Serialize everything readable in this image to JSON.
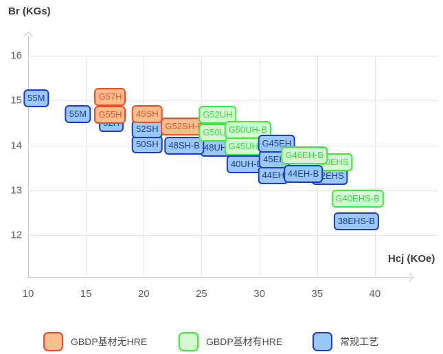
{
  "series_styles": {
    "gbdp_no_hre": {
      "fill": "#FBBF8D",
      "border": "#F14A2B",
      "text": "#E8512F"
    },
    "gbdp_hre": {
      "fill": "#D5FAD1",
      "border": "#3BEB3B",
      "text": "#32DC46"
    },
    "conventional": {
      "fill": "#9BC8FB",
      "border": "#1A3BCE",
      "text": "#1F3C94"
    }
  },
  "legend": [
    {
      "key": "gbdp_no_hre",
      "label": "GBDP基材无HRE",
      "x": 63
    },
    {
      "key": "gbdp_hre",
      "label": "GBDP基材有HRE",
      "x": 260
    },
    {
      "key": "conventional",
      "label": "常规工艺",
      "x": 455
    }
  ],
  "chart_data": {
    "type": "scatter",
    "title": "",
    "xlabel": "Hcj (KOe)",
    "ylabel": "Br (KGs)",
    "xlim": [
      10,
      43
    ],
    "ylim": [
      11.5,
      16.6
    ],
    "x_ticks": [
      10,
      15,
      20,
      25,
      30,
      35,
      40
    ],
    "y_ticks": [
      16,
      15,
      14,
      13,
      12
    ],
    "grid": true,
    "legend_position": "bottom",
    "series": [
      {
        "name": "GBDP基材无HRE",
        "key": "gbdp_no_hre"
      },
      {
        "name": "GBDP基材有HRE",
        "key": "gbdp_hre"
      },
      {
        "name": "常规工艺",
        "key": "conventional"
      }
    ],
    "points": [
      {
        "label": "55M",
        "hcj": 10.7,
        "br": 15.05,
        "series": "conventional"
      },
      {
        "label": "55M",
        "hcj": 14.3,
        "br": 14.7,
        "series": "conventional"
      },
      {
        "label": "52H",
        "hcj": 17.2,
        "br": 14.5,
        "series": "conventional"
      },
      {
        "label": "G57H",
        "hcj": 17.1,
        "br": 15.08,
        "series": "gbdp_no_hre"
      },
      {
        "label": "G55H",
        "hcj": 17.1,
        "br": 14.68,
        "series": "gbdp_no_hre"
      },
      {
        "label": "50SH",
        "hcj": 20.3,
        "br": 14.03,
        "series": "conventional"
      },
      {
        "label": "52SH",
        "hcj": 20.3,
        "br": 14.36,
        "series": "conventional"
      },
      {
        "label": "45SH",
        "hcj": 20.3,
        "br": 14.7,
        "series": "gbdp_no_hre"
      },
      {
        "label": "48UH",
        "hcj": 26.2,
        "br": 13.95,
        "series": "conventional"
      },
      {
        "label": "48SH-B",
        "hcj": 23.5,
        "br": 14.0,
        "series": "conventional"
      },
      {
        "label": "G52SH-B",
        "hcj": 23.5,
        "br": 14.42,
        "series": "gbdp_no_hre"
      },
      {
        "label": "G50UH",
        "hcj": 26.4,
        "br": 14.29,
        "series": "gbdp_hre"
      },
      {
        "label": "G52UH",
        "hcj": 26.4,
        "br": 14.68,
        "series": "gbdp_hre"
      },
      {
        "label": "40UH-B",
        "hcj": 28.9,
        "br": 13.58,
        "series": "conventional"
      },
      {
        "label": "G45UH-B",
        "hcj": 29.0,
        "br": 13.97,
        "series": "gbdp_hre"
      },
      {
        "label": "G50UH-B",
        "hcj": 29.0,
        "br": 14.34,
        "series": "gbdp_hre"
      },
      {
        "label": "44EH",
        "hcj": 31.2,
        "br": 13.33,
        "series": "conventional"
      },
      {
        "label": "45EH",
        "hcj": 31.3,
        "br": 13.69,
        "series": "conventional"
      },
      {
        "label": "G45EH",
        "hcj": 31.5,
        "br": 14.04,
        "series": "conventional"
      },
      {
        "label": "42EHS",
        "hcj": 36.1,
        "br": 13.32,
        "series": "conventional"
      },
      {
        "label": "40EHS",
        "hcj": 36.5,
        "br": 13.63,
        "series": "gbdp_hre"
      },
      {
        "label": "G46EH-B",
        "hcj": 33.9,
        "br": 13.78,
        "series": "gbdp_hre"
      },
      {
        "label": "44EH-B",
        "hcj": 33.8,
        "br": 13.37,
        "series": "conventional"
      },
      {
        "label": "G40EHS-B",
        "hcj": 38.5,
        "br": 12.81,
        "series": "gbdp_hre"
      },
      {
        "label": "38EHS-B",
        "hcj": 38.4,
        "br": 12.3,
        "series": "conventional"
      }
    ]
  }
}
